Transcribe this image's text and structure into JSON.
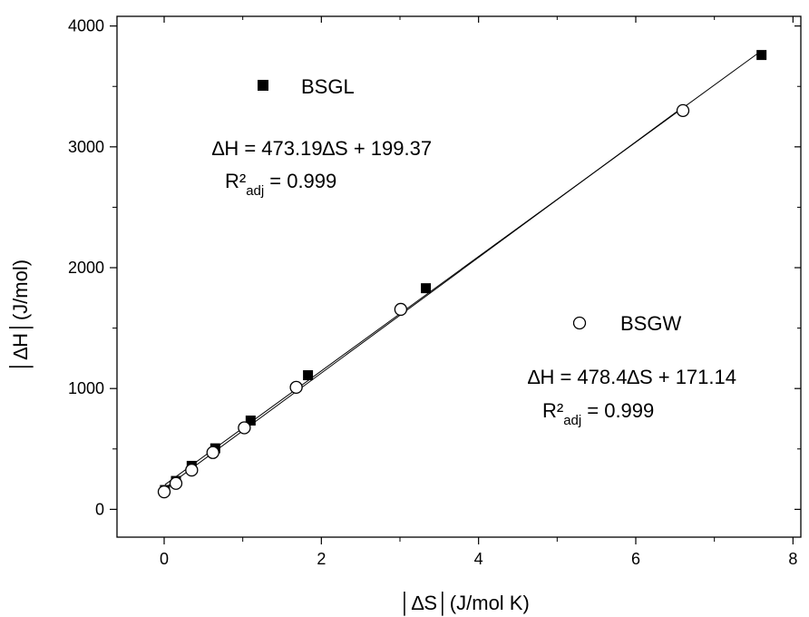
{
  "chart_data": {
    "type": "scatter",
    "xlabel": "│∆S│(J/mol K)",
    "ylabel": "│∆H│(J/mol)",
    "xlim": [
      -0.6,
      8.1
    ],
    "ylim": [
      -230,
      4080
    ],
    "x_ticks": [
      0,
      2,
      4,
      6,
      8
    ],
    "y_ticks": [
      0,
      1000,
      2000,
      3000,
      4000
    ],
    "grid": false,
    "legend_position": "in-plot annotations",
    "series": [
      {
        "name": "BSGL",
        "marker": "filled-square",
        "color": "#000000",
        "x": [
          0.01,
          0.15,
          0.35,
          0.65,
          1.1,
          1.83,
          3.33,
          7.6
        ],
        "y": [
          160,
          235,
          360,
          505,
          735,
          1110,
          1830,
          3760
        ],
        "fit": {
          "slope": 473.19,
          "intercept": 199.37
        },
        "equation": "∆H = 473.19∆S + 199.37",
        "r2_prefix": "R²",
        "r2_sub": "adj",
        "r2_value": "= 0.999"
      },
      {
        "name": "BSGW",
        "marker": "open-circle",
        "color": "#000000",
        "x": [
          0.0,
          0.15,
          0.35,
          0.62,
          1.02,
          1.68,
          3.01,
          6.6
        ],
        "y": [
          145,
          215,
          325,
          470,
          675,
          1010,
          1655,
          3300
        ],
        "fit": {
          "slope": 478.4,
          "intercept": 171.14
        },
        "equation": "∆H = 478.4∆S + 171.14",
        "r2_prefix": "R²",
        "r2_sub": "adj",
        "r2_value": "= 0.999"
      }
    ]
  }
}
